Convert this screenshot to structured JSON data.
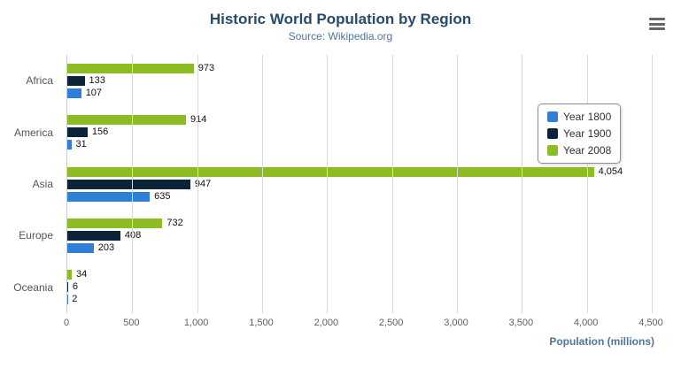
{
  "header": {
    "title": "Historic World Population by Region",
    "subtitle": "Source: Wikipedia.org"
  },
  "chart_data": {
    "type": "bar",
    "orientation": "horizontal",
    "title": "Historic World Population by Region",
    "subtitle": "Source: Wikipedia.org",
    "categories": [
      "Africa",
      "America",
      "Asia",
      "Europe",
      "Oceania"
    ],
    "series": [
      {
        "name": "Year 1800",
        "color": "#2f7ed8",
        "values": [
          107,
          31,
          635,
          203,
          2
        ]
      },
      {
        "name": "Year 1900",
        "color": "#0d233a",
        "values": [
          133,
          156,
          947,
          408,
          6
        ]
      },
      {
        "name": "Year 2008",
        "color": "#8bbc21",
        "values": [
          973,
          914,
          4054,
          732,
          34
        ]
      }
    ],
    "bar_order_top_to_bottom": [
      "Year 2008",
      "Year 1900",
      "Year 1800"
    ],
    "xlabel": "Population (millions)",
    "xlim": [
      0,
      4500
    ],
    "x_ticks": [
      0,
      500,
      1000,
      1500,
      2000,
      2500,
      3000,
      3500,
      4000,
      4500
    ],
    "x_tick_labels": [
      "0",
      "500",
      "1,000",
      "1,500",
      "2,000",
      "2,500",
      "3,000",
      "3,500",
      "4,000",
      "4,500"
    ],
    "grid": true,
    "legend_position": "right",
    "legend_entries": [
      "Year 1800",
      "Year 1900",
      "Year 2008"
    ]
  },
  "icons": {
    "menu": "hamburger-menu-icon"
  }
}
